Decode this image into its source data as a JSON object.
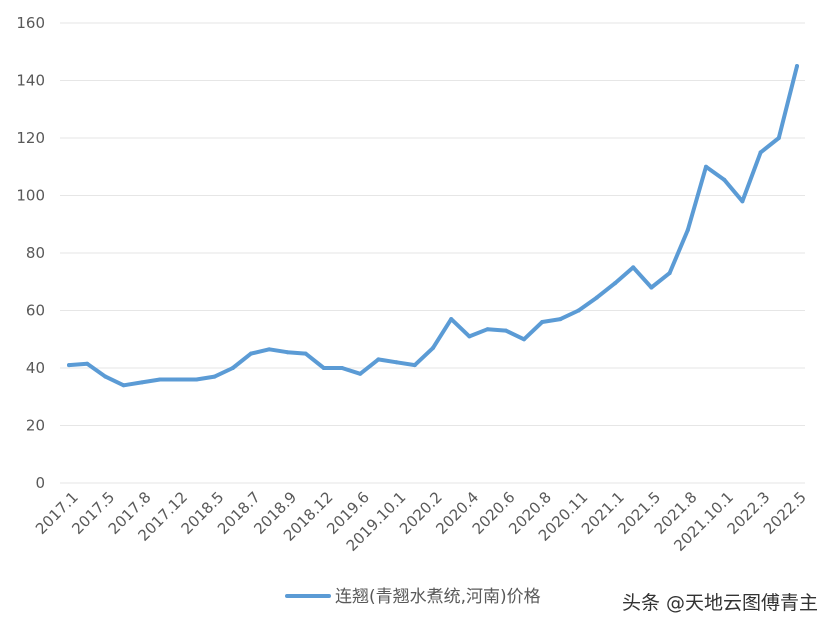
{
  "chart_data": {
    "type": "line",
    "title": "",
    "xlabel": "",
    "ylabel": "",
    "ylim": [
      0,
      160
    ],
    "yticks": [
      0,
      20,
      40,
      60,
      80,
      100,
      120,
      140,
      160
    ],
    "grid": true,
    "legend_position": "bottom",
    "series": [
      {
        "name": "连翘(青翘水煮统,河南)价格",
        "color": "#5b9bd5",
        "values": [
          41,
          41.5,
          37,
          34,
          35,
          36,
          36,
          36,
          37,
          40,
          45,
          46.5,
          45.5,
          45,
          40,
          40,
          38,
          43,
          42,
          41,
          47,
          57,
          51,
          53.5,
          53,
          50,
          56,
          57,
          60,
          64.5,
          69.5,
          75,
          68,
          73,
          88,
          110,
          105.5,
          98,
          115,
          120,
          145
        ]
      }
    ],
    "x_tick_labels": [
      "2017.1",
      "2017.5",
      "2017.8",
      "2017.12",
      "2018.5",
      "2018.7",
      "2018.9",
      "2018.12",
      "2019.6",
      "2019.10.1",
      "2020.2",
      "2020.4",
      "2020.6",
      "2020.8",
      "2020.11",
      "2021.1",
      "2021.5",
      "2021.8",
      "2021.10.1",
      "2022.3",
      "2022.5"
    ]
  },
  "watermark": "头条 @天地云图傅青主"
}
